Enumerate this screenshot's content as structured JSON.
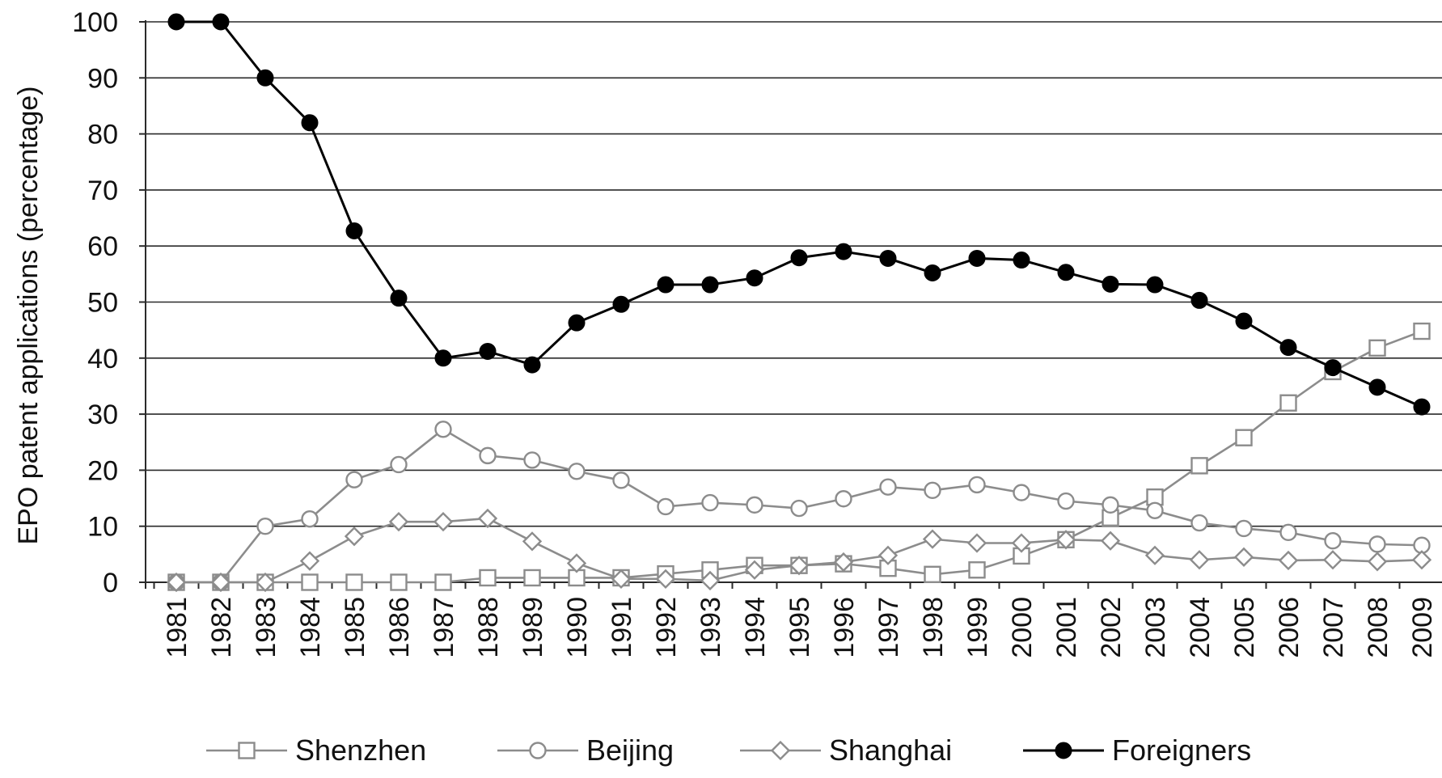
{
  "chart_data": {
    "type": "line",
    "title": "",
    "xlabel": "",
    "ylabel": "EPO patent applications (percentage)",
    "ylim": [
      0,
      100
    ],
    "yticks": [
      "0",
      "10",
      "20",
      "30",
      "40",
      "50",
      "60",
      "70",
      "80",
      "90",
      "100"
    ],
    "grid": true,
    "legend_position": "bottom",
    "categories": [
      "1981",
      "1982",
      "1983",
      "1984",
      "1985",
      "1986",
      "1987",
      "1988",
      "1989",
      "1990",
      "1991",
      "1992",
      "1993",
      "1994",
      "1995",
      "1996",
      "1997",
      "1998",
      "1999",
      "2000",
      "2001",
      "2002",
      "2003",
      "2004",
      "2005",
      "2006",
      "2007",
      "2008",
      "2009"
    ],
    "series": [
      {
        "name": "Shenzhen",
        "marker": "square-open",
        "color": "#8c8c8c",
        "values": [
          0,
          0,
          0,
          0,
          0,
          0,
          0,
          0.8,
          0.8,
          0.8,
          0.8,
          1.5,
          2.2,
          3,
          3,
          3.3,
          2.5,
          1.4,
          2.2,
          4.7,
          7.6,
          11.5,
          15.2,
          20.8,
          25.8,
          32,
          37.6,
          41.8,
          44.8
        ]
      },
      {
        "name": "Beijing",
        "marker": "circle-open",
        "color": "#8c8c8c",
        "values": [
          0,
          0,
          10,
          11.3,
          18.3,
          21,
          27.3,
          22.6,
          21.8,
          19.8,
          18.2,
          13.5,
          14.2,
          13.8,
          13.2,
          14.9,
          17,
          16.4,
          17.4,
          16,
          14.5,
          13.8,
          12.8,
          10.6,
          9.6,
          8.9,
          7.4,
          6.8,
          6.6
        ]
      },
      {
        "name": "Shanghai",
        "marker": "diamond-open",
        "color": "#8c8c8c",
        "values": [
          0,
          0,
          0,
          3.8,
          8.2,
          10.8,
          10.8,
          11.4,
          7.3,
          3.4,
          0.6,
          0.6,
          0.3,
          2.2,
          3,
          3.6,
          4.8,
          7.7,
          7,
          7,
          7.6,
          7.4,
          4.8,
          4,
          4.5,
          3.9,
          4,
          3.7,
          4
        ]
      },
      {
        "name": "Foreigners",
        "marker": "circle-filled",
        "color": "#000000",
        "values": [
          100,
          100,
          90,
          82,
          62.7,
          50.7,
          40,
          41.2,
          38.8,
          46.3,
          49.6,
          53.1,
          53.1,
          54.3,
          57.9,
          59,
          57.8,
          55.2,
          57.8,
          57.5,
          55.3,
          53.2,
          53.1,
          50.3,
          46.6,
          41.9,
          38.3,
          34.8,
          31.3
        ]
      }
    ]
  }
}
